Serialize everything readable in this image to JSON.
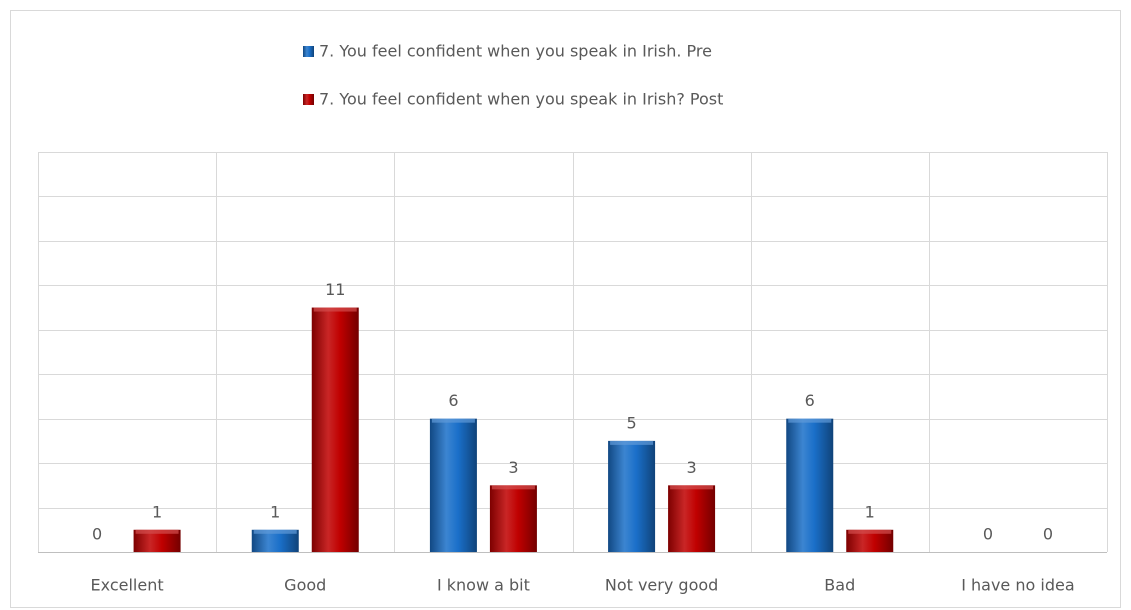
{
  "chart_data": {
    "type": "bar",
    "categories": [
      "Excellent",
      "Good",
      "I know a bit",
      "Not very good",
      "Bad",
      "I have no idea"
    ],
    "series": [
      {
        "name": "7.  You feel confident when you speak in Irish. Pre",
        "color": "#1a6fc9",
        "values": [
          0,
          1,
          6,
          5,
          6,
          0
        ]
      },
      {
        "name": "7.  You feel confident when you speak in Irish? Post",
        "color": "#c00000",
        "values": [
          1,
          11,
          3,
          3,
          1,
          0
        ]
      }
    ],
    "ylim": [
      0,
      18
    ],
    "yticks": [
      0,
      2,
      4,
      6,
      8,
      10,
      12,
      14,
      16,
      18
    ],
    "grid": true,
    "legend": "top"
  }
}
